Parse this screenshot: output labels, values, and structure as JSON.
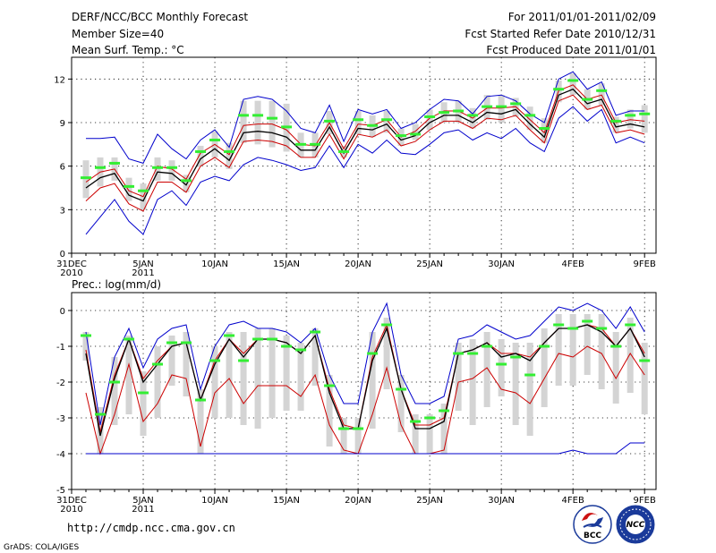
{
  "header": {
    "title": "DERF/NCC/BCC Monthly Forecast",
    "members": "Member Size=40",
    "variable1": "Mean Surf. Temp.: °C",
    "period": "For 2011/01/01-2011/02/09",
    "refer_date": "Fcst Started Refer Date 2010/12/31",
    "produced_date": "Fcst Produced Date 2011/01/01"
  },
  "footer": {
    "url": "http://cmdp.ncc.cma.gov.cn",
    "credit": "GrADS: COLA/IGES",
    "logo1_text": "BCC",
    "logo2_text": "NCC"
  },
  "colors": {
    "envelope": "#0000cc",
    "mean": "#000000",
    "spread": "#cc0000",
    "box": "#d4d4d4",
    "median": "#33ee33"
  },
  "chart_data": [
    {
      "type": "box-plume",
      "title": "Mean Surf. Temp.: °C",
      "x_start_label": "31DEC",
      "x_tick_labels": [
        "31DEC",
        "5JAN",
        "10JAN",
        "15JAN",
        "20JAN",
        "25JAN",
        "30JAN",
        "4FEB",
        "9FEB"
      ],
      "x_tick_sublabels": [
        {
          "tick": "31DEC",
          "text": "2010"
        },
        {
          "tick": "5JAN",
          "text": "2011"
        }
      ],
      "x_tick_days": [
        0,
        5,
        10,
        15,
        20,
        25,
        30,
        35,
        40
      ],
      "ylim": [
        0,
        13.5
      ],
      "y_ticks": [
        0,
        3,
        6,
        9,
        12
      ],
      "y_tick_labels": [
        "0",
        "3",
        "6",
        "9",
        "12"
      ],
      "days": [
        1,
        2,
        3,
        4,
        5,
        6,
        7,
        8,
        9,
        10,
        11,
        12,
        13,
        14,
        15,
        16,
        17,
        18,
        19,
        20,
        21,
        22,
        23,
        24,
        25,
        26,
        27,
        28,
        29,
        30,
        31,
        32,
        33,
        34,
        35,
        36,
        37,
        38,
        39,
        40
      ],
      "series": [
        {
          "name": "max",
          "color_key": "envelope",
          "values": [
            7.9,
            7.9,
            8.0,
            6.5,
            6.2,
            8.2,
            7.2,
            6.5,
            7.8,
            8.5,
            7.3,
            10.6,
            10.8,
            10.6,
            9.8,
            8.6,
            8.3,
            10.2,
            7.7,
            9.9,
            9.6,
            9.9,
            8.6,
            9.0,
            9.9,
            10.6,
            10.5,
            9.6,
            10.8,
            10.9,
            10.5,
            9.6,
            9.0,
            12.0,
            12.5,
            11.3,
            11.8,
            9.5,
            9.8,
            9.8
          ]
        },
        {
          "name": "upper",
          "color_key": "spread",
          "values": [
            4.9,
            5.6,
            5.8,
            4.3,
            3.9,
            6.0,
            5.8,
            5.1,
            6.9,
            7.5,
            6.8,
            8.8,
            8.9,
            8.9,
            8.5,
            7.5,
            7.4,
            9.0,
            7.2,
            8.9,
            8.8,
            9.2,
            8.0,
            8.4,
            9.3,
            9.8,
            9.8,
            9.3,
            10.0,
            10.0,
            10.1,
            9.2,
            8.3,
            11.2,
            11.6,
            10.6,
            10.9,
            9.0,
            9.2,
            9.1
          ]
        },
        {
          "name": "mean",
          "color_key": "mean",
          "values": [
            4.5,
            5.2,
            5.5,
            4.0,
            3.6,
            5.6,
            5.5,
            4.7,
            6.5,
            7.2,
            6.4,
            8.3,
            8.4,
            8.3,
            8.0,
            7.1,
            7.1,
            8.7,
            6.9,
            8.6,
            8.5,
            8.9,
            7.8,
            8.1,
            9.0,
            9.5,
            9.5,
            9.0,
            9.7,
            9.6,
            9.9,
            8.9,
            8.0,
            10.9,
            11.3,
            10.3,
            10.6,
            8.7,
            8.9,
            8.7
          ]
        },
        {
          "name": "lower",
          "color_key": "spread",
          "values": [
            3.6,
            4.5,
            4.8,
            3.4,
            2.9,
            4.9,
            4.9,
            4.2,
            6.0,
            6.6,
            5.9,
            7.7,
            7.8,
            7.7,
            7.4,
            6.6,
            6.6,
            8.2,
            6.5,
            8.2,
            8.0,
            8.5,
            7.4,
            7.7,
            8.5,
            9.1,
            9.1,
            8.6,
            9.3,
            9.2,
            9.5,
            8.5,
            7.6,
            10.5,
            10.9,
            9.9,
            10.2,
            8.3,
            8.5,
            8.2
          ]
        },
        {
          "name": "min",
          "color_key": "envelope",
          "values": [
            1.3,
            2.5,
            3.7,
            2.2,
            1.3,
            3.7,
            4.3,
            3.3,
            4.9,
            5.3,
            5.0,
            6.1,
            6.6,
            6.4,
            6.1,
            5.7,
            5.9,
            7.4,
            5.9,
            7.5,
            6.9,
            7.8,
            6.9,
            6.8,
            7.5,
            8.3,
            8.5,
            7.8,
            8.3,
            7.9,
            8.6,
            7.6,
            7.0,
            9.3,
            10.1,
            9.1,
            9.9,
            7.6,
            8.0,
            7.6
          ]
        }
      ],
      "boxes": {
        "q1": [
          3.8,
          4.6,
          5.0,
          3.6,
          3.0,
          5.0,
          5.0,
          4.2,
          6.0,
          6.6,
          5.8,
          7.6,
          7.5,
          7.3,
          7.0,
          6.6,
          6.6,
          8.2,
          6.6,
          8.2,
          8.0,
          8.3,
          7.4,
          7.8,
          8.5,
          9.0,
          9.0,
          8.6,
          9.2,
          9.0,
          9.4,
          8.5,
          7.6,
          10.4,
          10.9,
          9.9,
          10.2,
          8.3,
          8.6,
          8.3
        ],
        "q3": [
          6.4,
          6.6,
          6.6,
          5.2,
          4.8,
          6.6,
          6.4,
          5.4,
          7.4,
          8.4,
          7.6,
          10.5,
          10.5,
          10.5,
          10.3,
          8.3,
          8.3,
          9.8,
          7.4,
          9.8,
          9.5,
          9.8,
          8.6,
          8.9,
          9.9,
          10.4,
          10.5,
          10.0,
          10.9,
          10.9,
          10.7,
          10.1,
          9.3,
          11.9,
          12.4,
          11.3,
          11.7,
          9.4,
          9.9,
          10.2
        ],
        "median": [
          5.2,
          5.9,
          6.2,
          4.6,
          4.3,
          5.9,
          5.9,
          5.0,
          7.0,
          7.8,
          7.0,
          9.5,
          9.5,
          9.3,
          8.7,
          7.5,
          7.5,
          9.1,
          7.0,
          9.2,
          8.8,
          9.2,
          8.1,
          8.2,
          9.4,
          9.7,
          9.8,
          9.5,
          10.1,
          10.1,
          10.3,
          9.5,
          8.6,
          11.3,
          11.9,
          10.6,
          11.2,
          9.1,
          9.5,
          9.6
        ]
      }
    },
    {
      "type": "box-plume",
      "title": "Prec.: log(mm/d)",
      "x_tick_labels": [
        "31DEC",
        "5JAN",
        "10JAN",
        "15JAN",
        "20JAN",
        "25JAN",
        "30JAN",
        "4FEB",
        "9FEB"
      ],
      "x_tick_sublabels": [
        {
          "tick": "31DEC",
          "text": "2010"
        },
        {
          "tick": "5JAN",
          "text": "2011"
        }
      ],
      "x_tick_days": [
        0,
        5,
        10,
        15,
        20,
        25,
        30,
        35,
        40
      ],
      "ylim": [
        -5,
        0.5
      ],
      "y_ticks": [
        0,
        -1,
        -2,
        -3,
        -4,
        -5
      ],
      "y_tick_labels": [
        "0",
        "-1",
        "-2",
        "-3",
        "-4",
        "-5"
      ],
      "days": [
        1,
        2,
        3,
        4,
        5,
        6,
        7,
        8,
        9,
        10,
        11,
        12,
        13,
        14,
        15,
        16,
        17,
        18,
        19,
        20,
        21,
        22,
        23,
        24,
        25,
        26,
        27,
        28,
        29,
        30,
        31,
        32,
        33,
        34,
        35,
        36,
        37,
        38,
        39,
        40
      ],
      "series": [
        {
          "name": "max",
          "color_key": "envelope",
          "values": [
            -0.6,
            -3.2,
            -1.3,
            -0.5,
            -1.6,
            -0.8,
            -0.5,
            -0.4,
            -2.2,
            -1.0,
            -0.4,
            -0.3,
            -0.5,
            -0.5,
            -0.6,
            -0.9,
            -0.5,
            -1.8,
            -2.6,
            -2.6,
            -0.6,
            0.2,
            -1.8,
            -2.6,
            -2.6,
            -2.4,
            -0.8,
            -0.7,
            -0.4,
            -0.6,
            -0.8,
            -0.7,
            -0.3,
            0.1,
            0.0,
            0.2,
            0.0,
            -0.5,
            0.1,
            -0.6
          ]
        },
        {
          "name": "upper",
          "color_key": "spread",
          "values": [
            -1.1,
            -3.4,
            -1.8,
            -0.8,
            -1.9,
            -1.4,
            -1.0,
            -0.9,
            -2.5,
            -1.4,
            -0.8,
            -1.2,
            -0.8,
            -0.8,
            -0.9,
            -1.2,
            -0.7,
            -2.2,
            -3.2,
            -3.3,
            -1.3,
            -0.4,
            -2.2,
            -3.2,
            -3.2,
            -3.0,
            -1.2,
            -1.1,
            -0.9,
            -1.2,
            -1.2,
            -1.3,
            -0.9,
            -0.5,
            -0.5,
            -0.4,
            -0.5,
            -1.0,
            -0.5,
            -1.2
          ]
        },
        {
          "name": "mean",
          "color_key": "mean",
          "values": [
            -1.2,
            -3.5,
            -1.9,
            -0.8,
            -2.0,
            -1.5,
            -1.0,
            -0.9,
            -2.5,
            -1.5,
            -0.8,
            -1.3,
            -0.8,
            -0.8,
            -0.9,
            -1.2,
            -0.7,
            -2.3,
            -3.3,
            -3.3,
            -1.4,
            -0.5,
            -2.2,
            -3.3,
            -3.3,
            -3.1,
            -1.2,
            -1.1,
            -0.9,
            -1.3,
            -1.2,
            -1.4,
            -0.9,
            -0.5,
            -0.5,
            -0.4,
            -0.6,
            -1.0,
            -0.5,
            -1.3
          ]
        },
        {
          "name": "lower",
          "color_key": "spread",
          "values": [
            -2.3,
            -4.0,
            -2.9,
            -1.5,
            -3.1,
            -2.6,
            -1.8,
            -1.9,
            -3.8,
            -2.3,
            -1.9,
            -2.6,
            -2.1,
            -2.1,
            -2.1,
            -2.4,
            -1.8,
            -3.2,
            -3.9,
            -4.0,
            -2.9,
            -1.6,
            -3.2,
            -4.0,
            -4.0,
            -3.9,
            -2.0,
            -1.9,
            -1.6,
            -2.2,
            -2.3,
            -2.6,
            -1.9,
            -1.2,
            -1.3,
            -1.0,
            -1.2,
            -1.9,
            -1.2,
            -1.8
          ]
        },
        {
          "name": "min",
          "color_key": "envelope",
          "values": [
            -4.0,
            -4.0,
            -4.0,
            -4.0,
            -4.0,
            -4.0,
            -4.0,
            -4.0,
            -4.0,
            -4.0,
            -4.0,
            -4.0,
            -4.0,
            -4.0,
            -4.0,
            -4.0,
            -4.0,
            -4.0,
            -4.0,
            -4.0,
            -4.0,
            -4.0,
            -4.0,
            -4.0,
            -4.0,
            -4.0,
            -4.0,
            -4.0,
            -4.0,
            -4.0,
            -4.0,
            -4.0,
            -4.0,
            -4.0,
            -3.9,
            -4.0,
            -4.0,
            -4.0,
            -3.7,
            -3.7
          ]
        }
      ],
      "boxes": {
        "q1": [
          -1.4,
          -4.0,
          -3.2,
          -2.9,
          -3.5,
          -3.0,
          -2.1,
          -2.4,
          -4.0,
          -3.0,
          -3.0,
          -3.2,
          -3.3,
          -3.0,
          -2.8,
          -2.8,
          -2.1,
          -3.8,
          -4.0,
          -4.0,
          -3.3,
          -2.2,
          -3.4,
          -4.0,
          -4.0,
          -4.0,
          -2.8,
          -3.2,
          -2.7,
          -2.4,
          -3.2,
          -3.5,
          -2.7,
          -2.1,
          -2.1,
          -1.8,
          -2.2,
          -2.6,
          -2.3,
          -2.9
        ],
        "q3": [
          -0.6,
          -2.7,
          -1.3,
          -0.7,
          -1.7,
          -1.0,
          -0.7,
          -0.6,
          -2.2,
          -1.0,
          -0.6,
          -0.6,
          -0.5,
          -0.5,
          -0.7,
          -0.9,
          -0.5,
          -1.8,
          -3.0,
          -3.0,
          -0.6,
          -0.2,
          -1.8,
          -2.9,
          -2.9,
          -2.6,
          -0.9,
          -0.8,
          -0.6,
          -0.8,
          -0.9,
          -0.9,
          -0.5,
          -0.1,
          -0.1,
          -0.1,
          -0.1,
          -0.6,
          -0.2,
          -0.9
        ],
        "median": [
          -0.7,
          -2.9,
          -2.0,
          -0.8,
          -2.3,
          -1.5,
          -0.9,
          -0.9,
          -2.5,
          -1.4,
          -0.7,
          -1.4,
          -0.8,
          -0.8,
          -1.0,
          -1.1,
          -0.6,
          -2.1,
          -3.3,
          -3.3,
          -1.2,
          -0.4,
          -2.2,
          -3.1,
          -3.0,
          -2.8,
          -1.2,
          -1.2,
          -1.0,
          -1.5,
          -1.3,
          -1.8,
          -1.0,
          -0.4,
          -0.5,
          -0.3,
          -0.5,
          -1.0,
          -0.4,
          -1.4
        ]
      }
    }
  ]
}
